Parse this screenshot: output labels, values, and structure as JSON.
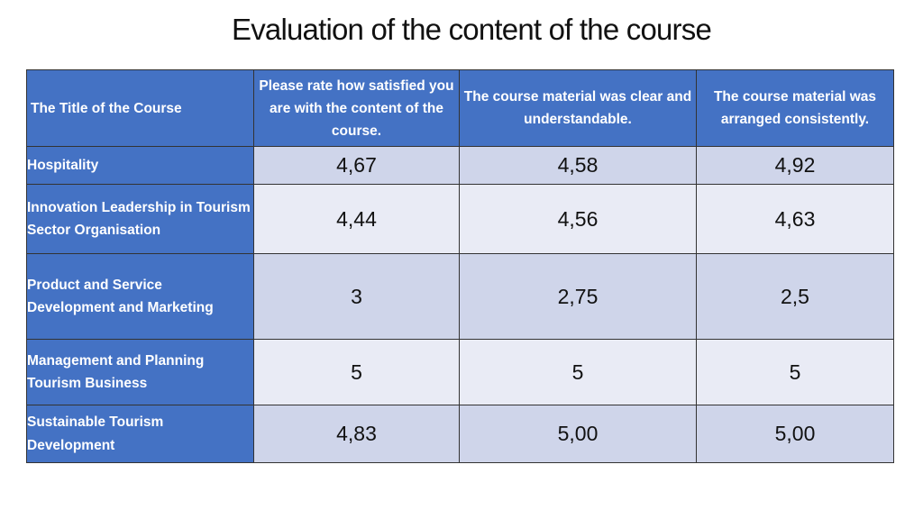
{
  "title": "Evaluation of the content of the course",
  "table": {
    "headers": [
      "The Title of the Course",
      "Please rate how satisfied you are with the content of the course.",
      "The course material was clear and understandable.",
      "The course material was arranged consistently."
    ],
    "rows": [
      {
        "course": "Hospitality",
        "values": [
          "4,67",
          "4,58",
          "4,92"
        ]
      },
      {
        "course": "Innovation Leadership in Tourism Sector Organisation",
        "values": [
          "4,44",
          "4,56",
          "4,63"
        ]
      },
      {
        "course": "Product and Service Development and Marketing",
        "values": [
          "3",
          "2,75",
          "2,5"
        ]
      },
      {
        "course": "Management and Planning Tourism Business",
        "values": [
          "5",
          "5",
          "5"
        ]
      },
      {
        "course": "Sustainable Tourism Development",
        "values": [
          "4,83",
          "5,00",
          "5,00"
        ]
      }
    ]
  },
  "colors": {
    "header_bg": "#4472c4",
    "row_band_dark": "#cfd5ea",
    "row_band_light": "#e9ebf5"
  }
}
